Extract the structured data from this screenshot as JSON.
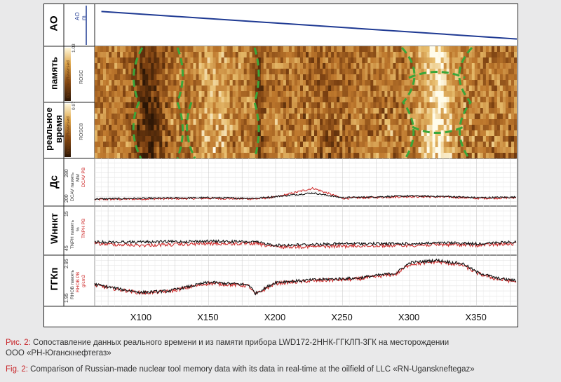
{
  "tracks": {
    "ao": {
      "label": "АО",
      "curve_name": "AO",
      "unit": "m",
      "color": "#1f3a93"
    },
    "memory": {
      "label": "память",
      "scale_name": "ROSC",
      "palette": "GreyRedReversed",
      "range_lo": "0.97",
      "range_hi": "1.03"
    },
    "realtime": {
      "label": "реальное время",
      "label_line1": "реальное",
      "label_line2": "время",
      "scale_name": "ROSC8",
      "palette": "GreyRedReversed",
      "range_lo": "0.97",
      "range_hi": "1.03"
    },
    "ds": {
      "label": "Дс",
      "curve_mem": "DCAV память",
      "curve_rt": "DCAV PB",
      "unit": "MM",
      "range_lo": "200",
      "range_hi": "280"
    },
    "wnnkt": {
      "label": "Wннкт",
      "curve_mem": "TNPH память",
      "curve_rt": "TNPH PB",
      "unit": "%",
      "range_lo": "45",
      "range_hi": "15"
    },
    "ggkp": {
      "label": "ГГКп",
      "curve_mem": "RHOB память",
      "curve_rt": "RHOB PB",
      "unit": "g/cm3",
      "range_lo": "1.95",
      "range_hi": "2.95"
    }
  },
  "chart_data": {
    "type": "line",
    "x_axis_ticks": [
      "X100",
      "X150",
      "X200",
      "X250",
      "X300",
      "X350"
    ],
    "x_tick_values": [
      100,
      150,
      200,
      250,
      300,
      350
    ],
    "x_range": [
      65,
      380
    ],
    "colors": {
      "memory": "#111111",
      "realtime": "#cc2222",
      "ao": "#1f3a93",
      "outline": "#3aa63a"
    },
    "series": [
      {
        "name": "DCAV",
        "track": "ds",
        "range": [
          200,
          280
        ],
        "x": [
          65,
          100,
          150,
          185,
          200,
          228,
          250,
          300,
          330,
          350,
          380
        ],
        "memory": [
          212,
          213,
          214,
          213,
          216,
          222,
          214,
          217,
          216,
          214,
          215
        ],
        "realtime": [
          211,
          212,
          213,
          212,
          215,
          230,
          213,
          216,
          215,
          213,
          214
        ]
      },
      {
        "name": "TNPH",
        "track": "wnnkt",
        "range": [
          45,
          15
        ],
        "x": [
          65,
          100,
          150,
          185,
          200,
          250,
          300,
          330,
          350,
          380
        ],
        "memory": [
          37,
          37,
          36.5,
          37,
          39,
          38,
          38,
          37.5,
          38,
          37
        ],
        "realtime": [
          38,
          39,
          38,
          38,
          40,
          39.5,
          39,
          38.5,
          39,
          38
        ]
      },
      {
        "name": "RHOB",
        "track": "ggkp",
        "range": [
          1.95,
          2.95
        ],
        "x": [
          65,
          85,
          100,
          120,
          150,
          180,
          185,
          200,
          230,
          260,
          290,
          300,
          320,
          340,
          350,
          365,
          380
        ],
        "memory": [
          2.38,
          2.28,
          2.22,
          2.25,
          2.42,
          2.37,
          2.2,
          2.42,
          2.47,
          2.5,
          2.6,
          2.8,
          2.85,
          2.78,
          2.62,
          2.5,
          2.45
        ],
        "realtime": [
          2.36,
          2.27,
          2.21,
          2.24,
          2.4,
          2.35,
          2.18,
          2.4,
          2.45,
          2.48,
          2.58,
          2.77,
          2.82,
          2.75,
          2.6,
          2.48,
          2.43
        ]
      },
      {
        "name": "AO",
        "track": "ao",
        "range": [
          0,
          1
        ],
        "x": [
          70,
          380
        ],
        "memory": [
          0.15,
          0.85
        ]
      }
    ]
  },
  "caption": {
    "ru_label": "Рис. 2:",
    "ru_text": " Сопоставление данных реального времени и из памяти прибора LWD172-2ННК-ГГКЛП-3ГК на месторождении",
    "ru_text2": "ООО «РН-Юганскнефтегаз»",
    "en_label": "Fig. 2:",
    "en_text": " Comparison of Russian-made nuclear tool memory data with its data in real-time at the oilfield of LLC «RN-Uganskneftegaz»"
  }
}
